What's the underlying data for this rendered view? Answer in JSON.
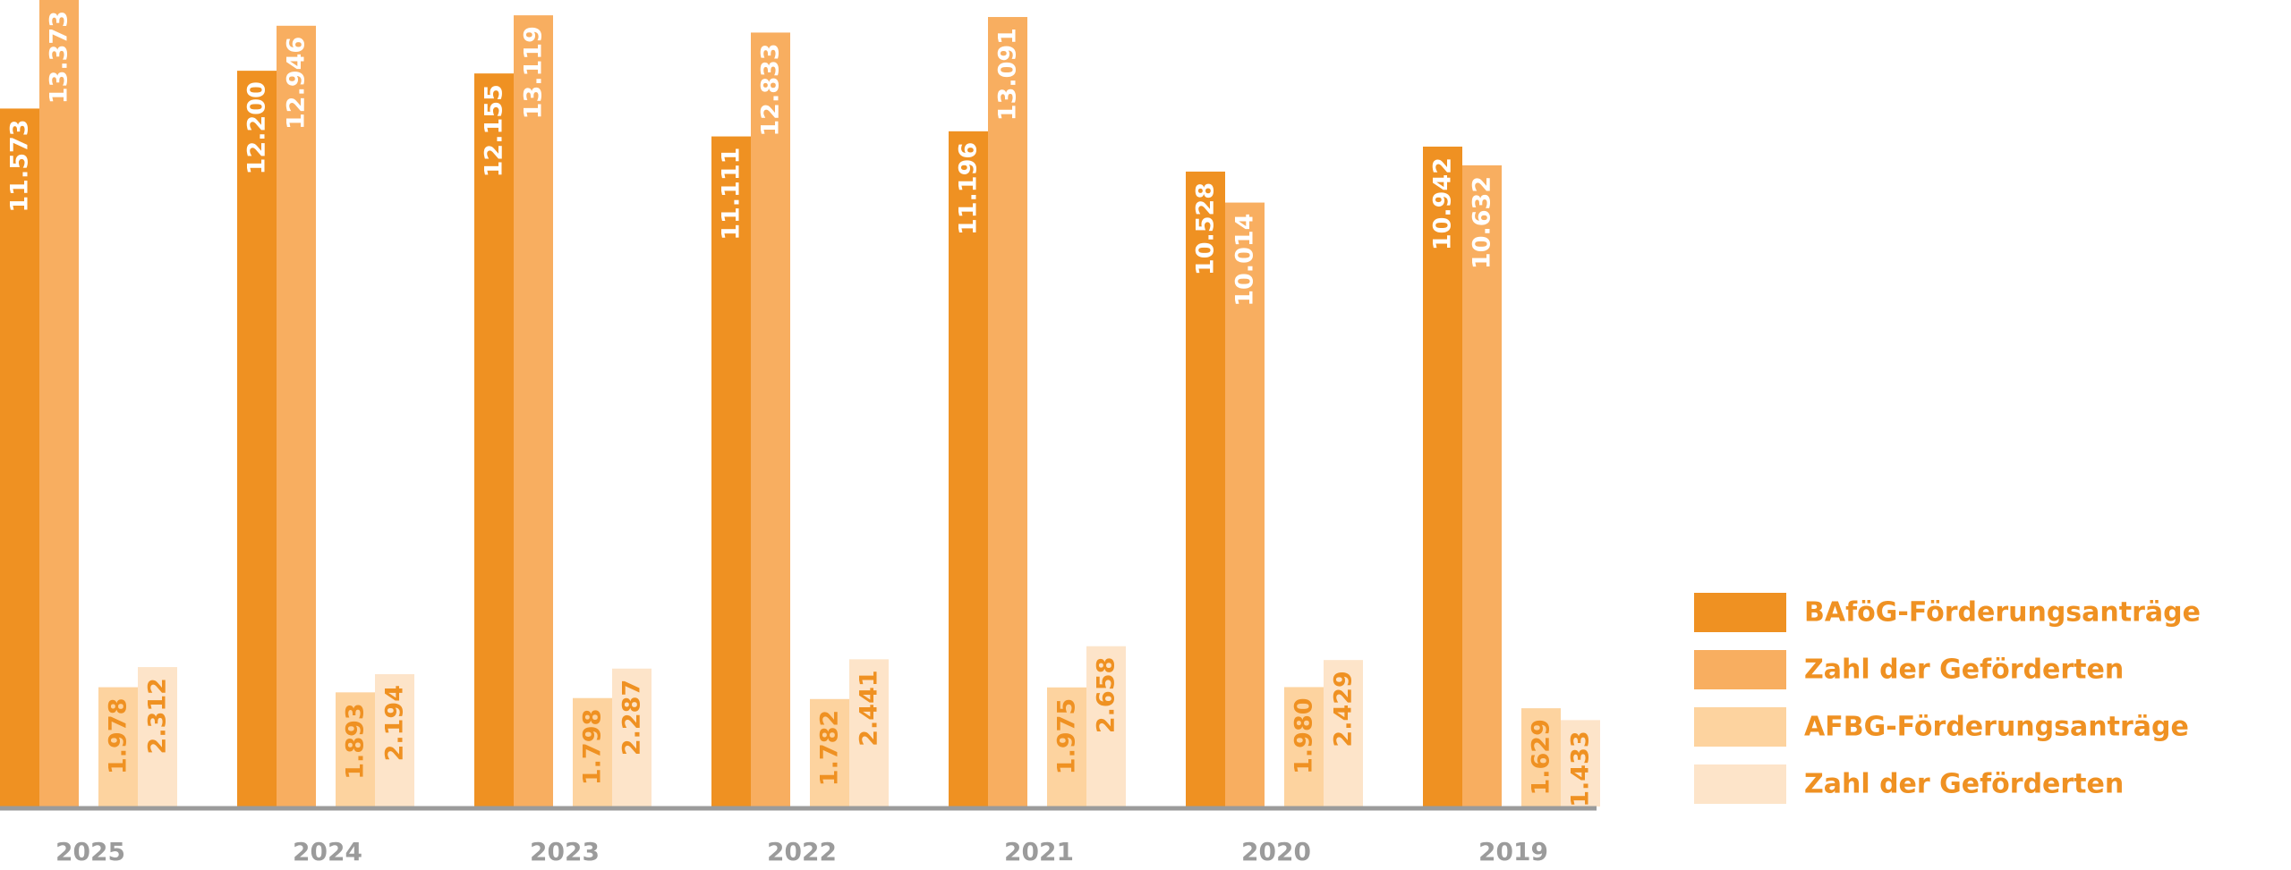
{
  "chart_data": {
    "type": "bar",
    "categories": [
      "2025",
      "2024",
      "2023",
      "2022",
      "2021",
      "2020",
      "2019"
    ],
    "series": [
      {
        "name": "BAföG-Förderungsanträge",
        "color": "#ef9122",
        "label_color": "#ffffff",
        "values": [
          11573,
          12200,
          12155,
          11111,
          11196,
          10528,
          10942
        ],
        "labels": [
          "11.573",
          "12.200",
          "12.155",
          "11.111",
          "11.196",
          "10.528",
          "10.942"
        ]
      },
      {
        "name": "Zahl der Geförderten",
        "color": "#f8ae60",
        "label_color": "#ffffff",
        "values": [
          13373,
          12946,
          13119,
          12833,
          13091,
          10014,
          10632
        ],
        "labels": [
          "13.373",
          "12.946",
          "13.119",
          "12.833",
          "13.091",
          "10.014",
          "10.632"
        ]
      },
      {
        "name": "AFBG-Förderungsanträge",
        "color": "#fdd39f",
        "label_color": "#ef9122",
        "values": [
          1978,
          1893,
          1798,
          1782,
          1975,
          1980,
          1629
        ],
        "labels": [
          "1.978",
          "1.893",
          "1.798",
          "1.782",
          "1.975",
          "1.980",
          "1.629"
        ]
      },
      {
        "name": "Zahl der Geförderten",
        "color": "#fde4c9",
        "label_color": "#ef9122",
        "values": [
          2312,
          2194,
          2287,
          2441,
          2658,
          2429,
          1433
        ],
        "labels": [
          "2.312",
          "2.194",
          "2.287",
          "2.441",
          "2.658",
          "2.429",
          "1.433"
        ]
      }
    ],
    "title": "",
    "xlabel": "",
    "ylabel": "",
    "ylim": [
      0,
      13373
    ],
    "grid": false,
    "legend_position": "bottom-right",
    "axis_color": "#9b9b9b"
  }
}
